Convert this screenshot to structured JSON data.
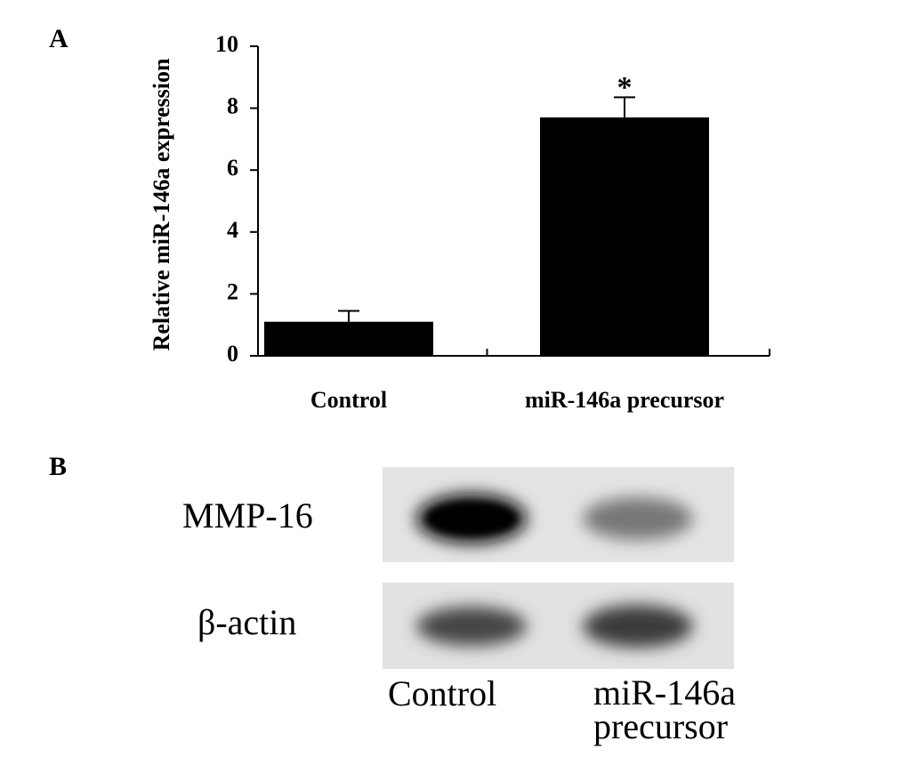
{
  "panel_labels": [
    "A",
    "B"
  ],
  "chart_data": {
    "type": "bar",
    "y_label": "Relative miR-146a expression",
    "categories": [
      "Control",
      "miR-146a precursor"
    ],
    "series": [
      {
        "color": "#000000",
        "values": [
          1.1,
          7.7
        ],
        "errors": [
          0.35,
          0.65
        ]
      }
    ],
    "annotations": [
      {
        "text": "*",
        "category": 1
      }
    ],
    "ylim": [
      0,
      10
    ],
    "yticks": [
      0,
      2,
      4,
      6,
      8,
      10
    ],
    "grid": false
  },
  "blot": {
    "rows": [
      "MMP-16",
      "β-actin"
    ],
    "lanes": [
      "Control",
      "miR-146a precursor"
    ]
  }
}
